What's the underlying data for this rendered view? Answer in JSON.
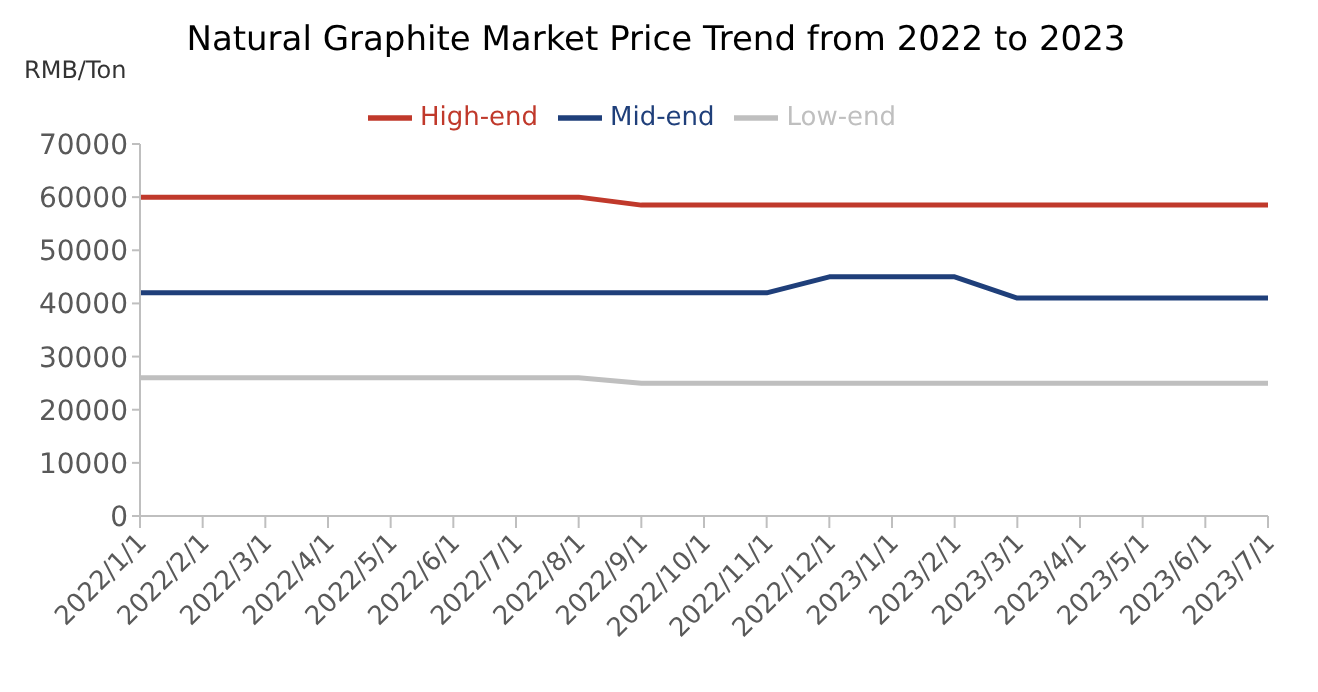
{
  "chart_data": {
    "type": "line",
    "title": "Natural Graphite Market Price Trend from 2022 to 2023",
    "ylabel": "RMB/Ton",
    "categories": [
      "2022/1/1",
      "2022/2/1",
      "2022/3/1",
      "2022/4/1",
      "2022/5/1",
      "2022/6/1",
      "2022/7/1",
      "2022/8/1",
      "2022/9/1",
      "2022/10/1",
      "2022/11/1",
      "2022/12/1",
      "2023/1/1",
      "2023/2/1",
      "2023/3/1",
      "2023/4/1",
      "2023/5/1",
      "2023/6/1",
      "2023/7/1"
    ],
    "series": [
      {
        "name": "High-end",
        "color": "#c0392b",
        "values": [
          60000,
          60000,
          60000,
          60000,
          60000,
          60000,
          60000,
          60000,
          58500,
          58500,
          58500,
          58500,
          58500,
          58500,
          58500,
          58500,
          58500,
          58500,
          58500
        ]
      },
      {
        "name": "Mid-end",
        "color": "#1f3f7a",
        "values": [
          42000,
          42000,
          42000,
          42000,
          42000,
          42000,
          42000,
          42000,
          42000,
          42000,
          42000,
          45000,
          45000,
          45000,
          41000,
          41000,
          41000,
          41000,
          41000
        ]
      },
      {
        "name": "Low-end",
        "color": "#bfbfbf",
        "values": [
          26000,
          26000,
          26000,
          26000,
          26000,
          26000,
          26000,
          26000,
          25000,
          25000,
          25000,
          25000,
          25000,
          25000,
          25000,
          25000,
          25000,
          25000,
          25000
        ]
      }
    ],
    "ylim": [
      0,
      70000
    ],
    "yticks": [
      0,
      10000,
      20000,
      30000,
      40000,
      50000,
      60000,
      70000
    ],
    "grid": false,
    "legend": "top",
    "marker": "none",
    "line_style": "solid"
  }
}
